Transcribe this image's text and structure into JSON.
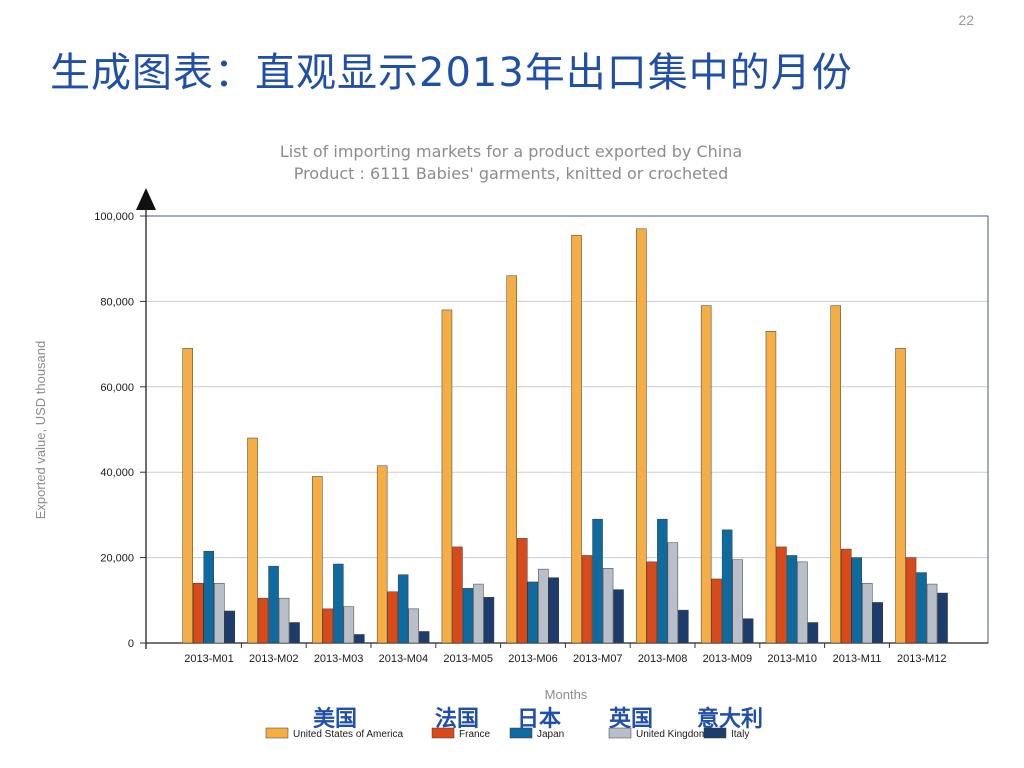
{
  "page": {
    "number": "22"
  },
  "slide": {
    "title": "生成图表：直观显示2013年出口集中的月份"
  },
  "chart_data": {
    "type": "bar",
    "title": "List of importing markets for a product exported by China",
    "subtitle": "Product : 6111 Babies' garments, knitted or crocheted",
    "xlabel": "Months",
    "ylabel": "Exported value, USD thousand",
    "ylim": [
      0,
      100000
    ],
    "yticks": [
      "0",
      "20,000",
      "40,000",
      "60,000",
      "80,000",
      "100,000"
    ],
    "grid": true,
    "legend_position": "bottom",
    "categories": [
      "2013-M01",
      "2013-M02",
      "2013-M03",
      "2013-M04",
      "2013-M05",
      "2013-M06",
      "2013-M07",
      "2013-M08",
      "2013-M09",
      "2013-M10",
      "2013-M11",
      "2013-M12"
    ],
    "series": [
      {
        "name": "United States of America",
        "color": "#f5ad45",
        "values": [
          69000,
          48000,
          39000,
          41500,
          78000,
          86000,
          95500,
          97000,
          79000,
          73000,
          79000,
          69000
        ]
      },
      {
        "name": "France",
        "color": "#d94a1a",
        "values": [
          14000,
          10500,
          8000,
          12000,
          22500,
          24500,
          20500,
          19000,
          15000,
          22500,
          22000,
          20000
        ]
      },
      {
        "name": "Japan",
        "color": "#0f6aa0",
        "values": [
          21500,
          18000,
          18500,
          16000,
          12800,
          14300,
          29000,
          29000,
          26500,
          20500,
          20000,
          16500
        ]
      },
      {
        "name": "United Kingdom",
        "color": "#b8bfc8",
        "values": [
          14000,
          10500,
          8500,
          8000,
          13800,
          17300,
          17500,
          23500,
          19500,
          19000,
          14000,
          13800
        ]
      },
      {
        "name": "Italy",
        "color": "#1d3c6e",
        "values": [
          7500,
          4800,
          2000,
          2700,
          10700,
          15300,
          12500,
          7700,
          5700,
          4800,
          9500,
          11700
        ]
      }
    ],
    "annotations": [
      "美国",
      "法国",
      "日本",
      "英国",
      "意大利"
    ]
  }
}
